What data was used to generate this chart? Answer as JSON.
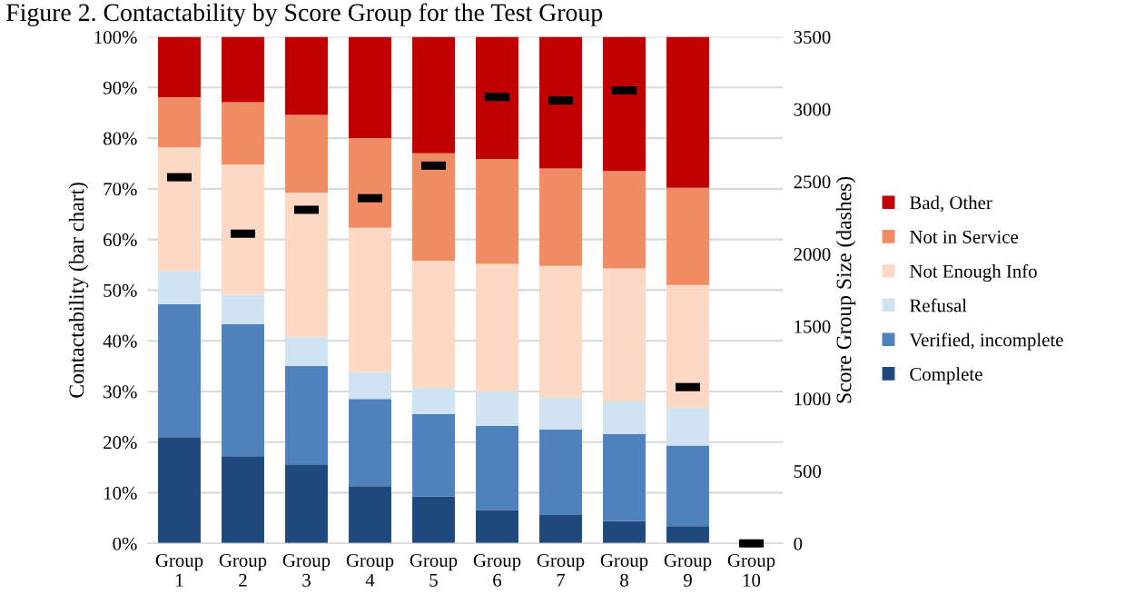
{
  "chart_data": {
    "type": "bar",
    "stacked": true,
    "title": "Figure 2. Contactability by Score Group for the Test Group",
    "ylabel": "Contactability (bar chart)",
    "y2label": "Score Group Size (dashes)",
    "categories": [
      "Group\n1",
      "Group\n2",
      "Group\n3",
      "Group\n4",
      "Group\n5",
      "Group\n6",
      "Group\n7",
      "Group\n8",
      "Group\n9",
      "Group\n10"
    ],
    "series": [
      {
        "name": "Complete",
        "color": "#1f497d",
        "values": [
          21.0,
          17.2,
          15.6,
          11.3,
          9.3,
          6.6,
          5.6,
          4.4,
          3.4,
          null
        ]
      },
      {
        "name": "Verified, incomplete",
        "color": "#4f81bd",
        "values": [
          26.2,
          26.1,
          19.4,
          17.2,
          16.2,
          16.6,
          16.9,
          17.2,
          15.9,
          null
        ]
      },
      {
        "name": "Refusal",
        "color": "#d0e3f0",
        "values": [
          6.6,
          5.8,
          5.7,
          5.3,
          5.2,
          6.8,
          6.3,
          6.4,
          7.4,
          null
        ]
      },
      {
        "name": "Not Enough Info",
        "color": "#fcd9c4",
        "values": [
          24.4,
          25.7,
          28.5,
          28.5,
          25.1,
          25.2,
          26.0,
          26.3,
          24.3,
          null
        ]
      },
      {
        "name": "Not in Service",
        "color": "#f08c64",
        "values": [
          9.9,
          12.3,
          15.4,
          17.7,
          21.2,
          20.7,
          19.2,
          19.2,
          19.2,
          null
        ]
      },
      {
        "name": "Bad, Other",
        "color": "#c00000",
        "values": [
          11.9,
          12.9,
          15.4,
          20.0,
          23.0,
          24.1,
          26.0,
          26.5,
          29.8,
          null
        ]
      },
      {
        "type": "scatter",
        "axis": "y2",
        "color": "#000000",
        "values": [
          2530,
          2140,
          2305,
          2385,
          2610,
          3085,
          3060,
          3130,
          1080,
          0
        ]
      }
    ],
    "ylim": [
      0,
      100
    ],
    "yticks": [
      {
        "value": 0,
        "label": "0%"
      },
      {
        "value": 10,
        "label": "10%"
      },
      {
        "value": 20,
        "label": "20%"
      },
      {
        "value": 30,
        "label": "30%"
      },
      {
        "value": 40,
        "label": "40%"
      },
      {
        "value": 50,
        "label": "50%"
      },
      {
        "value": 60,
        "label": "60%"
      },
      {
        "value": 70,
        "label": "70%"
      },
      {
        "value": 80,
        "label": "80%"
      },
      {
        "value": 90,
        "label": "90%"
      },
      {
        "value": 100,
        "label": "100%"
      }
    ],
    "y2lim": [
      0,
      3500
    ],
    "y2ticks": [
      0,
      500,
      1000,
      1500,
      2000,
      2500,
      3000,
      3500
    ],
    "grid": "y",
    "legend": "right"
  }
}
